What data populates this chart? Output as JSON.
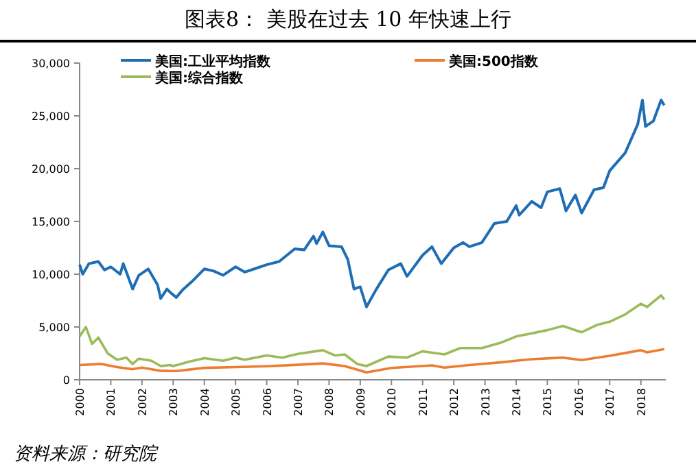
{
  "chart_data": {
    "type": "line",
    "title": "图表8： 美股在过去 10 年快速上行",
    "annotations": [
      "资料来源：研究院"
    ],
    "legend": "top",
    "grid": false,
    "line_style": "solid",
    "marker": "none",
    "xlim": [
      2000,
      2018.8
    ],
    "xticks": [
      2000,
      2001,
      2002,
      2003,
      2004,
      2005,
      2006,
      2007,
      2008,
      2009,
      2010,
      2011,
      2012,
      2013,
      2014,
      2015,
      2016,
      2017,
      2018
    ],
    "ylim": [
      0,
      30000
    ],
    "yticks": [
      0,
      {
        "value": 5000,
        "label": "5,000"
      },
      {
        "value": 10000,
        "label": "10,000"
      },
      {
        "value": 15000,
        "label": "15,000"
      },
      {
        "value": 20000,
        "label": "20,000"
      },
      {
        "value": 25000,
        "label": "25,000"
      },
      {
        "value": 30000,
        "label": "30,000"
      }
    ],
    "series": [
      {
        "name": "美国:工业平均指数",
        "color": "#1f6eb5",
        "x": [
          2000,
          2000.1,
          2000.3,
          2000.6,
          2000.8,
          2001,
          2001.3,
          2001.4,
          2001.7,
          2001.9,
          2002.2,
          2002.5,
          2002.6,
          2002.8,
          2002.9,
          2003.1,
          2003.3,
          2003.6,
          2004,
          2004.3,
          2004.6,
          2005,
          2005.3,
          2005.7,
          2006,
          2006.4,
          2006.9,
          2007.2,
          2007.5,
          2007.6,
          2007.8,
          2008,
          2008.4,
          2008.6,
          2008.8,
          2009,
          2009.2,
          2009.5,
          2009.9,
          2010.3,
          2010.5,
          2011,
          2011.3,
          2011.6,
          2012,
          2012.3,
          2012.5,
          2012.9,
          2013.3,
          2013.7,
          2014,
          2014.1,
          2014.5,
          2014.8,
          2015,
          2015.4,
          2015.6,
          2015.9,
          2016.1,
          2016.5,
          2016.8,
          2017,
          2017.5,
          2017.9,
          2018.05,
          2018.15,
          2018.4,
          2018.65,
          2018.75
        ],
        "values": [
          10900,
          10000,
          11000,
          11200,
          10400,
          10700,
          10000,
          11000,
          8600,
          9900,
          10500,
          9000,
          7700,
          8600,
          8300,
          7800,
          8500,
          9300,
          10500,
          10300,
          9900,
          10700,
          10200,
          10600,
          10900,
          11200,
          12400,
          12300,
          13600,
          12900,
          14000,
          12700,
          12600,
          11400,
          8600,
          8800,
          6900,
          8500,
          10400,
          11000,
          9800,
          11800,
          12600,
          11000,
          12500,
          13000,
          12600,
          13000,
          14800,
          15000,
          16500,
          15600,
          16900,
          16300,
          17800,
          18100,
          16000,
          17500,
          15800,
          18000,
          18200,
          19800,
          21500,
          24200,
          26500,
          24000,
          24500,
          26500,
          26000
        ]
      },
      {
        "name": "美国:500指数",
        "color": "#ed7d31",
        "x": [
          2000,
          2000.7,
          2001.2,
          2001.7,
          2002,
          2002.6,
          2003.1,
          2004,
          2005,
          2006,
          2007,
          2007.8,
          2008.5,
          2009.2,
          2010,
          2011.3,
          2011.7,
          2012.5,
          2013.5,
          2014.5,
          2015.5,
          2016.1,
          2017,
          2018,
          2018.2,
          2018.75
        ],
        "values": [
          1400,
          1500,
          1200,
          1000,
          1150,
          850,
          830,
          1130,
          1200,
          1280,
          1420,
          1550,
          1300,
          700,
          1120,
          1360,
          1150,
          1400,
          1650,
          1950,
          2100,
          1870,
          2270,
          2800,
          2600,
          2900
        ]
      },
      {
        "name": "美国:综合指数",
        "color": "#9bbb59",
        "x": [
          2000,
          2000.2,
          2000.4,
          2000.6,
          2000.9,
          2001.2,
          2001.5,
          2001.7,
          2001.9,
          2002.3,
          2002.6,
          2002.9,
          2003,
          2003.5,
          2004,
          2004.6,
          2005,
          2005.3,
          2006,
          2006.5,
          2007,
          2007.8,
          2008.2,
          2008.5,
          2008.9,
          2009.2,
          2009.9,
          2010.5,
          2011,
          2011.7,
          2012.2,
          2012.9,
          2013.5,
          2014,
          2014.5,
          2015,
          2015.5,
          2016.1,
          2016.6,
          2017,
          2017.5,
          2018,
          2018.2,
          2018.65,
          2018.75
        ],
        "values": [
          4100,
          5000,
          3400,
          4000,
          2500,
          1900,
          2100,
          1500,
          2000,
          1800,
          1300,
          1400,
          1300,
          1700,
          2050,
          1800,
          2100,
          1900,
          2300,
          2100,
          2450,
          2800,
          2300,
          2400,
          1500,
          1300,
          2200,
          2100,
          2700,
          2400,
          3000,
          3000,
          3500,
          4100,
          4400,
          4700,
          5100,
          4500,
          5200,
          5500,
          6200,
          7200,
          6900,
          8000,
          7600
        ]
      }
    ]
  }
}
